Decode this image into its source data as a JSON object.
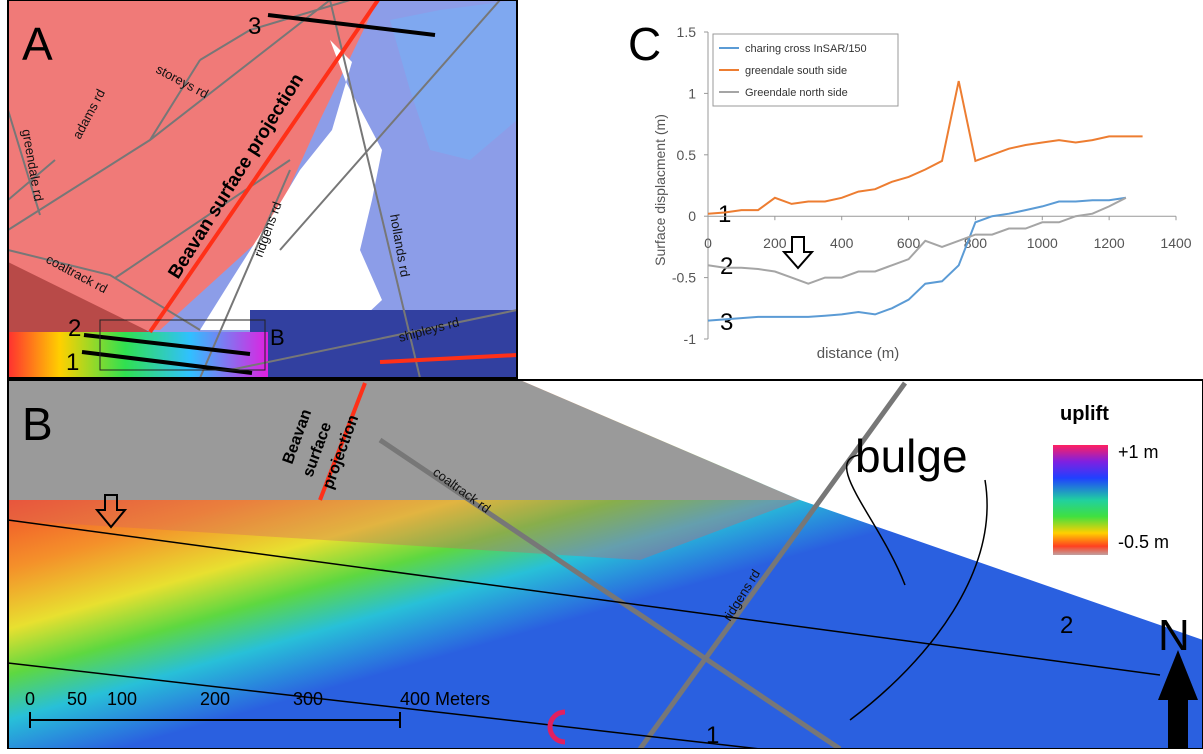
{
  "panel_a": {
    "label": "A",
    "roads": [
      "greendale rd",
      "adams rd",
      "storeys rd",
      "coaltrack rd",
      "ridgens rd",
      "hollands rd",
      "shipleys rd"
    ],
    "fault": "Beavan surface projection",
    "profiles": [
      "1",
      "2",
      "3"
    ],
    "inset": "B"
  },
  "panel_b": {
    "label": "B",
    "fault": [
      "Beavan",
      "surface",
      "projection"
    ],
    "roads": [
      "coaltrack rd",
      "ridgens rd"
    ],
    "annotation": "bulge",
    "legend": {
      "title": "uplift",
      "max": "+1 m",
      "min": "-0.5 m"
    },
    "profiles": [
      "2",
      "1"
    ],
    "north": "N",
    "scale": [
      "0",
      "50",
      "100",
      "200",
      "300",
      "400 Meters"
    ]
  },
  "chart_data": {
    "type": "line",
    "label": "C",
    "xlabel": "distance (m)",
    "ylabel": "Surface displacment (m)",
    "x": [
      0,
      50,
      100,
      150,
      200,
      250,
      300,
      350,
      400,
      450,
      500,
      550,
      600,
      650,
      700,
      750,
      800,
      850,
      900,
      950,
      1000,
      1050,
      1100,
      1150,
      1200,
      1250,
      1300
    ],
    "series": [
      {
        "name": "charing cross InSAR/150",
        "color": "#5b9bd5",
        "values": [
          -0.85,
          -0.84,
          -0.83,
          -0.82,
          -0.82,
          -0.82,
          -0.82,
          -0.81,
          -0.8,
          -0.78,
          -0.8,
          -0.75,
          -0.68,
          -0.55,
          -0.53,
          -0.4,
          -0.05,
          0,
          0.02,
          0.05,
          0.08,
          0.12,
          0.12,
          0.13,
          0.13,
          0.15,
          null
        ]
      },
      {
        "name": "greendale south side",
        "color": "#ed7d31",
        "values": [
          0.02,
          0.03,
          0.05,
          0.05,
          0.15,
          0.1,
          0.12,
          0.12,
          0.15,
          0.2,
          0.22,
          0.28,
          0.32,
          0.38,
          0.45,
          1.1,
          0.45,
          0.5,
          0.55,
          0.58,
          0.6,
          0.62,
          0.6,
          0.62,
          0.65,
          0.65,
          0.65
        ]
      },
      {
        "name": "Greendale north side",
        "color": "#a5a5a5",
        "values": [
          -0.4,
          -0.42,
          -0.42,
          -0.43,
          -0.45,
          -0.5,
          -0.55,
          -0.5,
          -0.5,
          -0.45,
          -0.45,
          -0.4,
          -0.35,
          -0.2,
          -0.25,
          -0.2,
          -0.15,
          -0.15,
          -0.1,
          -0.1,
          -0.05,
          -0.05,
          0,
          0.02,
          0.08,
          0.15,
          null
        ]
      }
    ],
    "xlim": [
      0,
      1400
    ],
    "xticks": [
      0,
      200,
      400,
      600,
      800,
      1000,
      1200,
      1400
    ],
    "ylim": [
      -1,
      1.5
    ],
    "yticks": [
      -1,
      -0.5,
      0,
      0.5,
      1,
      1.5
    ],
    "legend": "top-left",
    "annotations": [
      "1",
      "2",
      "3"
    ]
  }
}
